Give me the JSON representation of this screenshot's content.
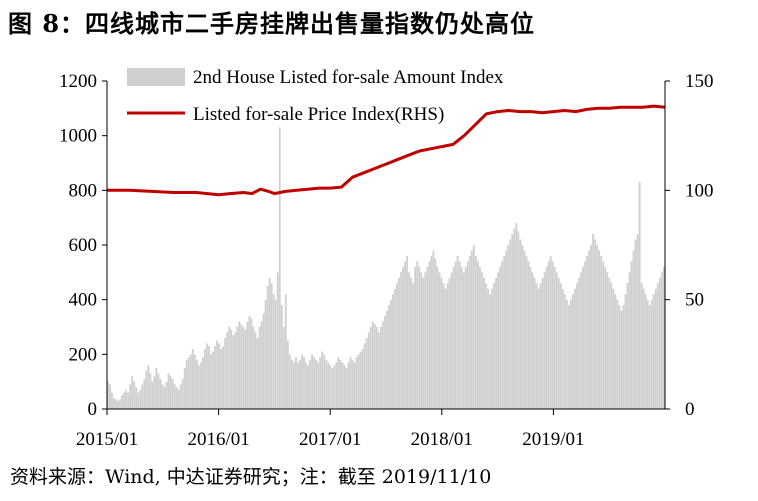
{
  "title": "图 8：四线城市二手房挂牌出售量指数仍处高位",
  "source": "资料来源：Wind, 中达证券研究；注：截至 2019/11/10",
  "colors": {
    "bar": "#cfced0",
    "line": "#c00000",
    "axis": "#000000"
  },
  "chart_data": {
    "type": "bar",
    "x_ticks": [
      "2015/01",
      "2016/01",
      "2017/01",
      "2018/01",
      "2019/01"
    ],
    "y_left": {
      "ticks": [
        0,
        200,
        400,
        600,
        800,
        1000,
        1200
      ],
      "range": [
        0,
        1200
      ]
    },
    "y_right": {
      "ticks": [
        0,
        50,
        100,
        150
      ],
      "range": [
        0,
        150
      ]
    },
    "legend": {
      "position": "top-left"
    },
    "series": [
      {
        "name": "2nd House Listed for-sale Amount Index",
        "type": "bar",
        "axis": "left",
        "x_start": "2015/01",
        "interval": "weekly",
        "values": [
          100,
          90,
          60,
          40,
          35,
          30,
          35,
          50,
          60,
          70,
          60,
          90,
          120,
          100,
          80,
          60,
          70,
          90,
          110,
          140,
          160,
          130,
          100,
          120,
          150,
          130,
          110,
          90,
          80,
          100,
          130,
          120,
          110,
          90,
          80,
          70,
          90,
          110,
          150,
          180,
          190,
          200,
          220,
          200,
          180,
          160,
          170,
          190,
          220,
          240,
          230,
          200,
          210,
          230,
          250,
          240,
          220,
          230,
          260,
          280,
          300,
          290,
          270,
          280,
          300,
          320,
          310,
          300,
          290,
          320,
          340,
          330,
          300,
          280,
          260,
          300,
          320,
          350,
          400,
          450,
          480,
          460,
          420,
          400,
          500,
          1030,
          380,
          300,
          420,
          250,
          200,
          180,
          170,
          190,
          170,
          180,
          200,
          190,
          170,
          160,
          180,
          200,
          190,
          180,
          170,
          190,
          210,
          200,
          180,
          170,
          160,
          150,
          160,
          170,
          190,
          180,
          170,
          160,
          150,
          170,
          190,
          180,
          170,
          190,
          200,
          210,
          220,
          240,
          260,
          280,
          300,
          320,
          310,
          300,
          280,
          300,
          320,
          340,
          360,
          380,
          400,
          420,
          440,
          460,
          480,
          500,
          520,
          540,
          560,
          500,
          480,
          460,
          520,
          540,
          520,
          500,
          480,
          500,
          520,
          540,
          560,
          580,
          550,
          520,
          500,
          480,
          460,
          440,
          460,
          480,
          500,
          520,
          540,
          560,
          540,
          520,
          500,
          520,
          540,
          560,
          580,
          600,
          560,
          540,
          520,
          500,
          480,
          460,
          440,
          420,
          440,
          460,
          480,
          500,
          520,
          540,
          560,
          580,
          600,
          620,
          640,
          660,
          680,
          650,
          620,
          600,
          580,
          560,
          540,
          520,
          500,
          480,
          460,
          440,
          460,
          480,
          500,
          520,
          540,
          560,
          540,
          520,
          500,
          480,
          460,
          440,
          420,
          400,
          380,
          400,
          420,
          440,
          460,
          480,
          500,
          520,
          540,
          560,
          580,
          600,
          640,
          620,
          600,
          580,
          560,
          540,
          520,
          500,
          480,
          460,
          440,
          420,
          400,
          380,
          360,
          380,
          420,
          460,
          500,
          540,
          580,
          620,
          640,
          830,
          460,
          440,
          420,
          400,
          380,
          400,
          420,
          440,
          460,
          480,
          500,
          520
        ]
      },
      {
        "name": "Listed for-sale Price Index(RHS)",
        "type": "line",
        "axis": "right",
        "x": [
          0,
          0.04,
          0.08,
          0.12,
          0.16,
          0.2,
          0.22,
          0.245,
          0.26,
          0.275,
          0.29,
          0.3,
          0.32,
          0.34,
          0.36,
          0.38,
          0.4,
          0.42,
          0.44,
          0.46,
          0.48,
          0.5,
          0.52,
          0.54,
          0.56,
          0.58,
          0.6,
          0.62,
          0.64,
          0.66,
          0.68,
          0.7,
          0.72,
          0.74,
          0.76,
          0.78,
          0.8,
          0.82,
          0.84,
          0.86,
          0.88,
          0.9,
          0.92,
          0.94,
          0.96,
          0.98,
          1.0
        ],
        "values": [
          100,
          100,
          99.5,
          99,
          99,
          98,
          98.5,
          99,
          98.5,
          100.5,
          99.5,
          98.5,
          99.5,
          100,
          100.5,
          101,
          101,
          101.5,
          106,
          108,
          110,
          112,
          114,
          116,
          118,
          119,
          120,
          121,
          125,
          130,
          135,
          136,
          136.5,
          136,
          136,
          135.5,
          136,
          136.5,
          136,
          137,
          137.5,
          137.5,
          138,
          138,
          138,
          138.5,
          138
        ]
      }
    ]
  }
}
